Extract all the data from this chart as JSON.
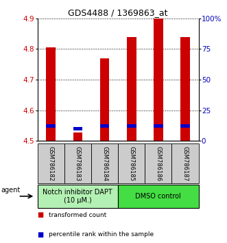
{
  "title": "GDS4488 / 1369863_at",
  "samples": [
    "GSM786182",
    "GSM786183",
    "GSM786184",
    "GSM786185",
    "GSM786186",
    "GSM786187"
  ],
  "red_values": [
    4.805,
    4.527,
    4.77,
    4.838,
    4.9,
    4.838
  ],
  "blue_values": [
    4.548,
    4.539,
    4.548,
    4.548,
    4.548,
    4.548
  ],
  "ymin": 4.5,
  "ymax": 4.9,
  "y_ticks": [
    4.5,
    4.6,
    4.7,
    4.8,
    4.9
  ],
  "y_ticks_right": [
    0,
    25,
    50,
    75,
    100
  ],
  "y_ticks_right_labels": [
    "0",
    "25",
    "50",
    "75",
    "100%"
  ],
  "groups": [
    {
      "label": "Notch inhibitor DAPT\n(10 μM.)",
      "start": 0,
      "end": 3,
      "color": "#b3f0b3"
    },
    {
      "label": "DMSO control",
      "start": 3,
      "end": 6,
      "color": "#44dd44"
    }
  ],
  "bar_color_red": "#cc0000",
  "bar_color_blue": "#0000cc",
  "bar_width": 0.35,
  "agent_label": "agent",
  "legend_red": "transformed count",
  "legend_blue": "percentile rank within the sample",
  "bg_color": "#ffffff",
  "ylabel_color_left": "#cc0000",
  "ylabel_color_right": "#0000bb",
  "title_fontsize": 9,
  "tick_fontsize": 7.5,
  "sample_fontsize": 6,
  "group_fontsize": 7,
  "legend_fontsize": 6.5
}
